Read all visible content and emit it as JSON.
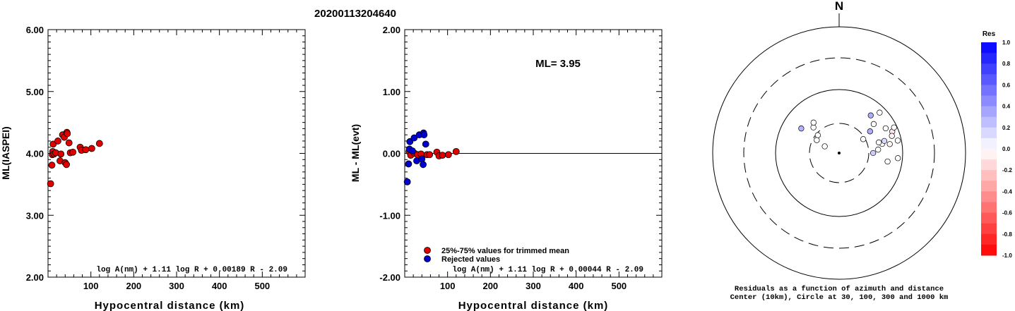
{
  "title": "20200113204640",
  "chart_data": [
    {
      "type": "scatter",
      "xlabel": "Hypocentral distance (km)",
      "ylabel": "ML(IASPEI)",
      "xlim": [
        0,
        600
      ],
      "ylim": [
        2.0,
        6.0
      ],
      "x_ticks": [
        "100",
        "200",
        "300",
        "400",
        "500"
      ],
      "y_ticks": [
        "6.00",
        "5.00",
        "4.00",
        "3.00",
        "2.00"
      ],
      "formula": "log A(nm) + 1.11 log R + 0.00189 R - 2.09",
      "series": [
        {
          "color": "#e00000",
          "points": [
            [
              6,
              3.51
            ],
            [
              9,
              3.81
            ],
            [
              10,
              3.98
            ],
            [
              11,
              4.03
            ],
            [
              12,
              4.15
            ],
            [
              14,
              3.99
            ],
            [
              18,
              4.01
            ],
            [
              23,
              4.2
            ],
            [
              28,
              3.88
            ],
            [
              30,
              3.99
            ],
            [
              34,
              4.3
            ],
            [
              38,
              4.26
            ],
            [
              40,
              3.85
            ],
            [
              43,
              3.82
            ],
            [
              44,
              4.34
            ],
            [
              45,
              4.32
            ],
            [
              49,
              4.17
            ],
            [
              52,
              4.01
            ],
            [
              58,
              4.02
            ],
            [
              75,
              4.1
            ],
            [
              78,
              4.05
            ],
            [
              88,
              4.06
            ],
            [
              102,
              4.08
            ],
            [
              120,
              4.16
            ]
          ]
        }
      ]
    },
    {
      "type": "scatter",
      "xlabel": "Hypocentral distance (km)",
      "ylabel": "ML - ML(evt)",
      "xlim": [
        0,
        600
      ],
      "ylim": [
        -2.0,
        2.0
      ],
      "x_ticks": [
        "100",
        "200",
        "300",
        "400",
        "500"
      ],
      "y_ticks": [
        "2.00",
        "1.00",
        "0.00",
        "-1.00",
        "-2.00"
      ],
      "ml_label": "ML= 3.95",
      "zero_line": true,
      "formula": "log A(nm) + 1.11 log R + 0.00044 R - 2.09",
      "legend": [
        "25%-75% values for trimmed mean",
        "Rejected values"
      ],
      "series": [
        {
          "name": "25%-75% values for trimmed mean",
          "color": "#e00000",
          "points": [
            [
              10,
              0.03
            ],
            [
              14,
              -0.03
            ],
            [
              23,
              0.0
            ],
            [
              30,
              -0.02
            ],
            [
              38,
              -0.01
            ],
            [
              52,
              -0.02
            ],
            [
              58,
              -0.02
            ],
            [
              75,
              0.02
            ],
            [
              80,
              -0.04
            ],
            [
              88,
              -0.03
            ],
            [
              102,
              -0.02
            ],
            [
              120,
              0.03
            ]
          ]
        },
        {
          "name": "Rejected values",
          "color": "#0000d0",
          "points": [
            [
              6,
              -0.46
            ],
            [
              9,
              -0.17
            ],
            [
              11,
              0.07
            ],
            [
              12,
              0.19
            ],
            [
              18,
              0.04
            ],
            [
              22,
              0.25
            ],
            [
              28,
              -0.12
            ],
            [
              34,
              0.3
            ],
            [
              40,
              -0.09
            ],
            [
              43,
              -0.18
            ],
            [
              44,
              0.33
            ],
            [
              45,
              0.3
            ],
            [
              49,
              0.15
            ]
          ]
        }
      ]
    },
    {
      "type": "scatter",
      "subtype": "polar",
      "north_label": "N",
      "caption_line1": "Residuals as a function of azimuth and distance",
      "caption_line2": "Center (10km), Circle at 30, 100, 300 and 1000 km",
      "rings_km": [
        30,
        100,
        300,
        1000
      ],
      "colorbar_title": "Res",
      "colorbar_ticks": [
        "1.0",
        "0.8",
        "0.6",
        "0.4",
        "0.2",
        "0.0",
        "-0.2",
        "-0.4",
        "-0.6",
        "-0.8",
        "-1.0"
      ],
      "colorbar_range": [
        -1.0,
        1.0
      ],
      "stations": [
        {
          "az": 315,
          "dist_km": 38,
          "res": 0.0
        },
        {
          "az": 320,
          "dist_km": 43,
          "res": 0.0
        },
        {
          "az": 303,
          "dist_km": 52,
          "res": 0.3
        },
        {
          "az": 310,
          "dist_km": 28,
          "res": 0.0
        },
        {
          "az": 300,
          "dist_km": 26,
          "res": 0.0
        },
        {
          "az": 295,
          "dist_km": 18,
          "res": 0.0
        },
        {
          "az": 60,
          "dist_km": 28,
          "res": 0.0
        },
        {
          "az": 55,
          "dist_km": 40,
          "res": 0.32
        },
        {
          "az": 50,
          "dist_km": 52,
          "res": 0.0
        },
        {
          "az": 62,
          "dist_km": 68,
          "res": 0.0
        },
        {
          "az": 40,
          "dist_km": 60,
          "res": 0.32
        },
        {
          "az": 45,
          "dist_km": 80,
          "res": 0.0
        },
        {
          "az": 68,
          "dist_km": 80,
          "res": -0.1
        },
        {
          "az": 72,
          "dist_km": 75,
          "res": -0.05
        },
        {
          "az": 65,
          "dist_km": 90,
          "res": 0.0
        },
        {
          "az": 78,
          "dist_km": 88,
          "res": 0.0
        },
        {
          "az": 80,
          "dist_km": 65,
          "res": -0.03
        },
        {
          "az": 78,
          "dist_km": 50,
          "res": 0.0
        },
        {
          "az": 85,
          "dist_km": 42,
          "res": 0.0
        },
        {
          "az": 90,
          "dist_km": 35,
          "res": 0.2
        },
        {
          "az": 75,
          "dist_km": 55,
          "res": 0.15
        },
        {
          "az": 75,
          "dist_km": 45,
          "res": 0.0
        },
        {
          "az": 95,
          "dist_km": 85,
          "res": 0.0
        },
        {
          "az": 100,
          "dist_km": 60,
          "res": 0.0
        }
      ]
    }
  ]
}
